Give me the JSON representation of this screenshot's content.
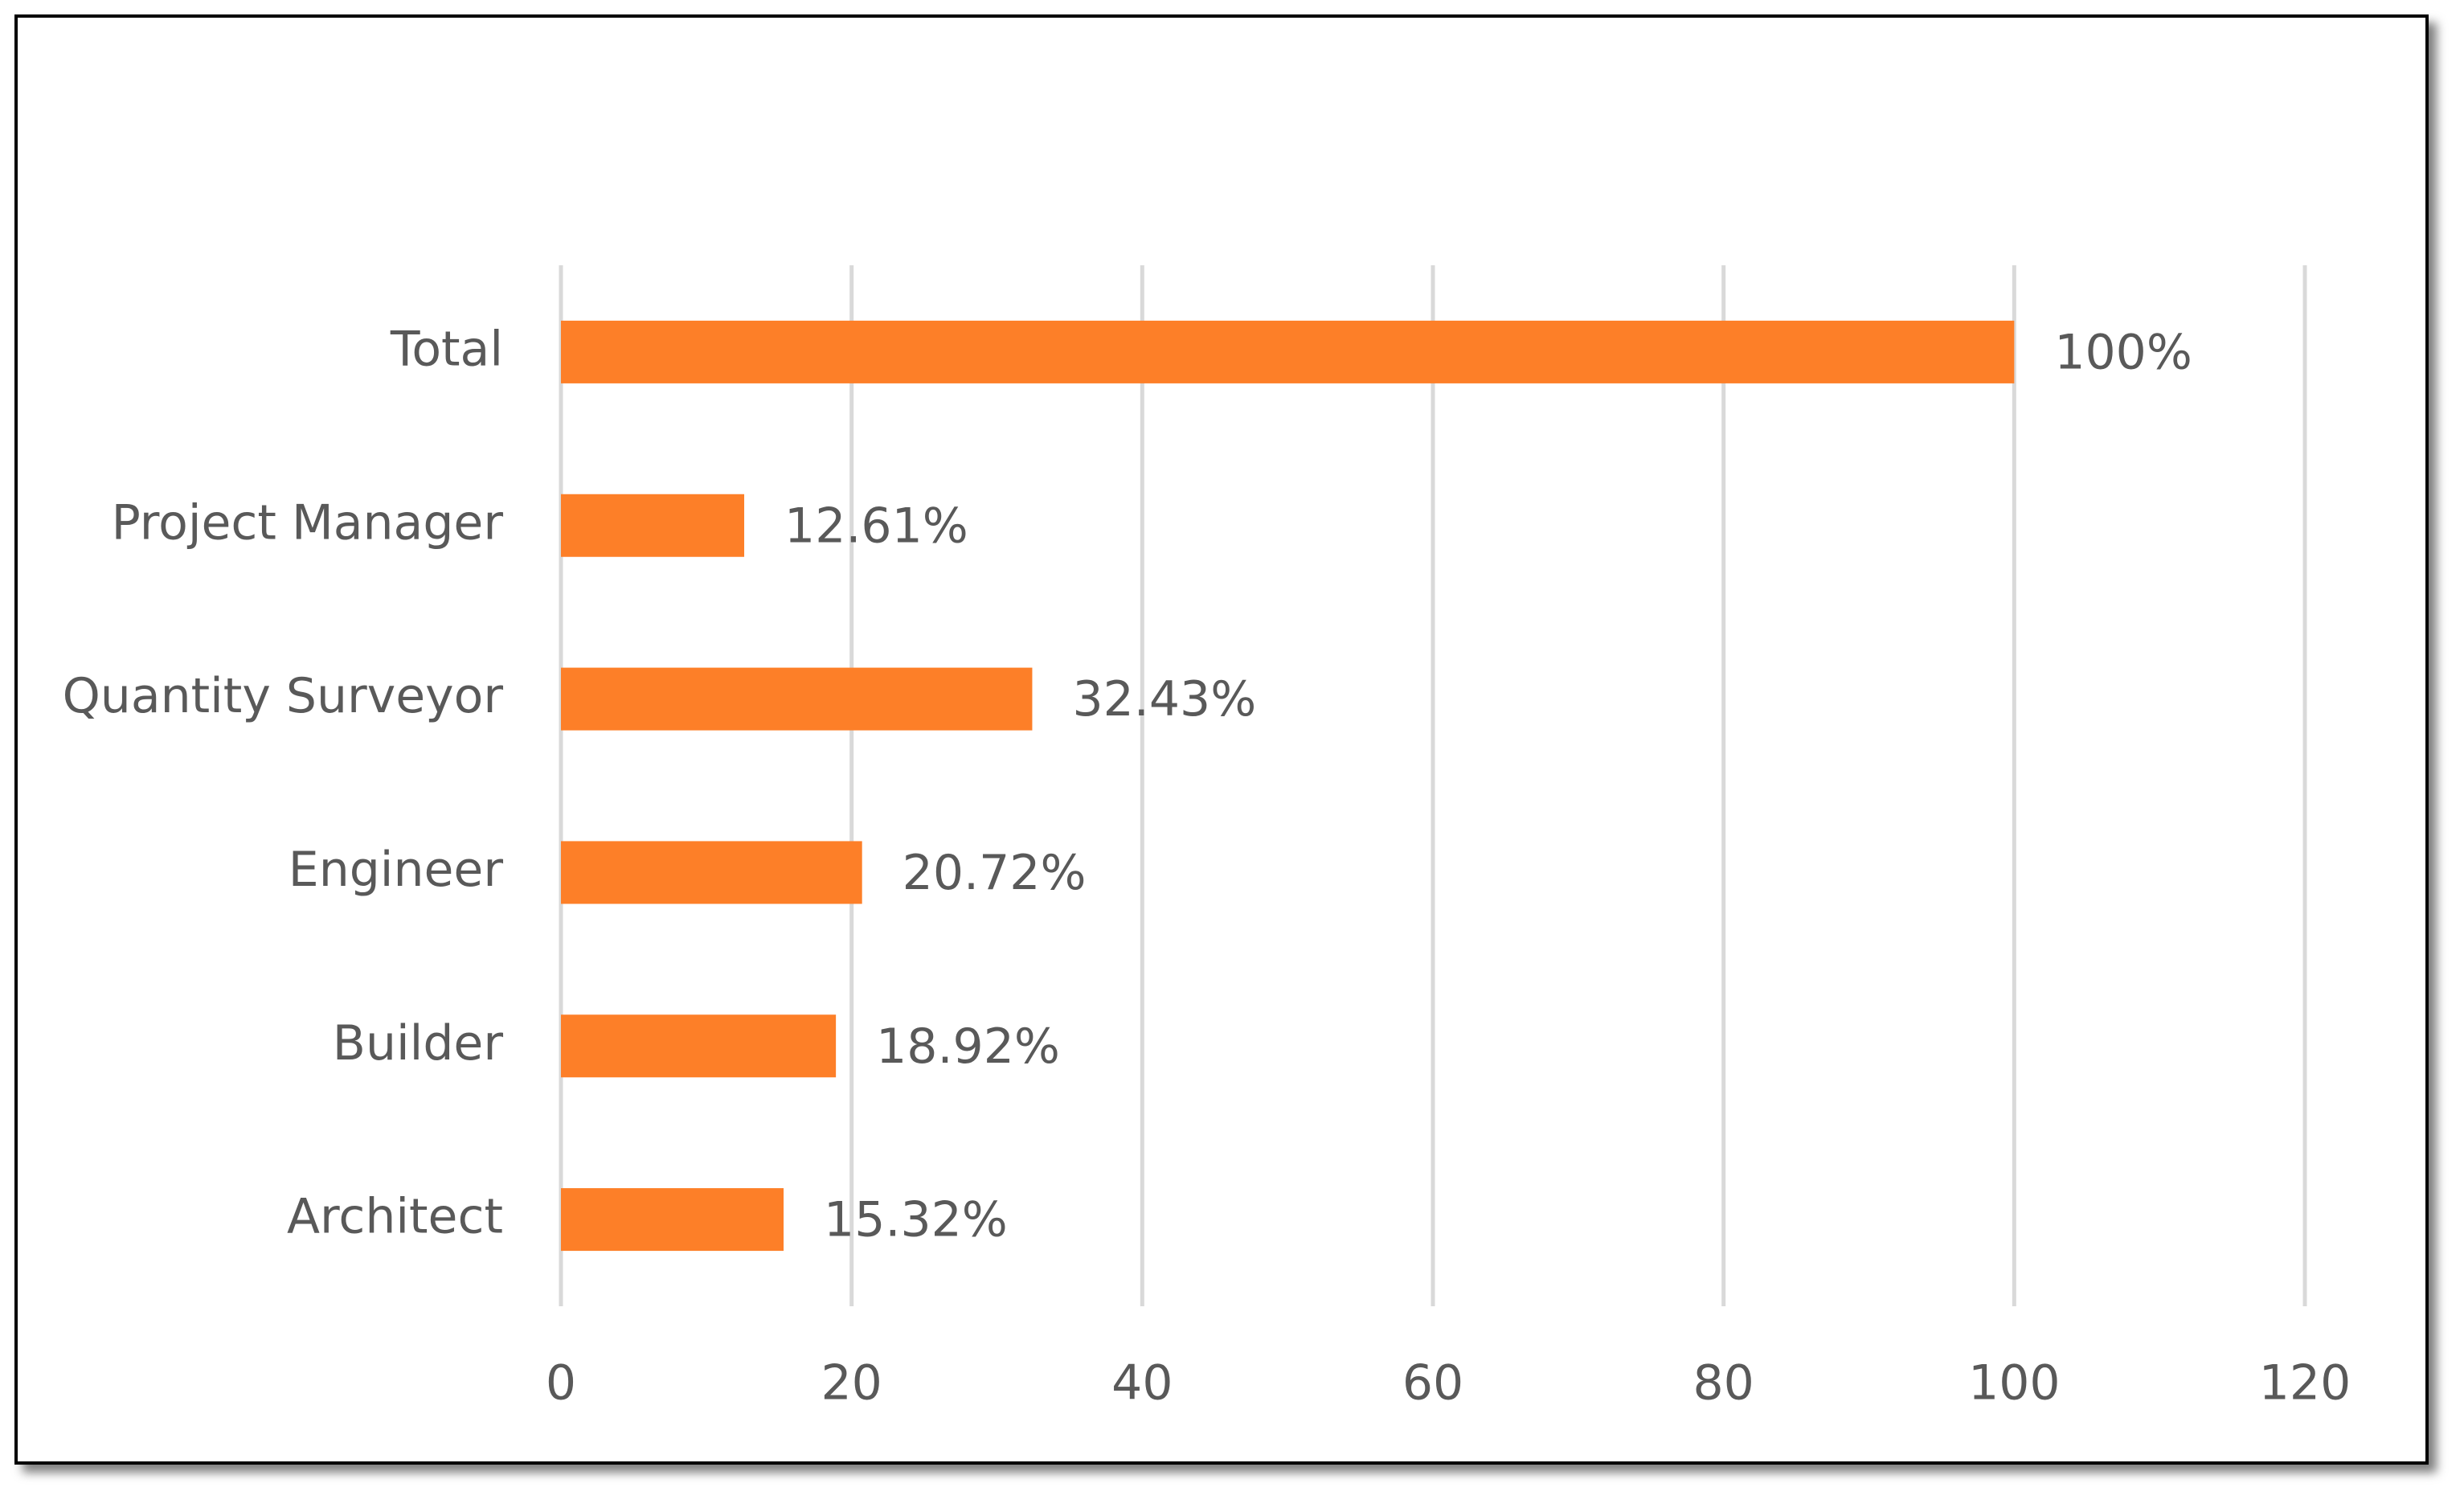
{
  "chart_data": {
    "type": "bar",
    "orientation": "horizontal",
    "categories": [
      "Total",
      "Project Manager",
      "Quantity Surveyor",
      "Engineer",
      "Builder",
      "Architect"
    ],
    "values": [
      100,
      12.61,
      32.43,
      20.72,
      18.92,
      15.32
    ],
    "value_labels": [
      "100%",
      "12.61%",
      "32.43%",
      "20.72%",
      "18.92%",
      "15.32%"
    ],
    "color": "#fd7f28",
    "xlim": [
      0,
      120
    ],
    "xticks": [
      0,
      20,
      40,
      60,
      80,
      100,
      120
    ],
    "grid": true
  }
}
